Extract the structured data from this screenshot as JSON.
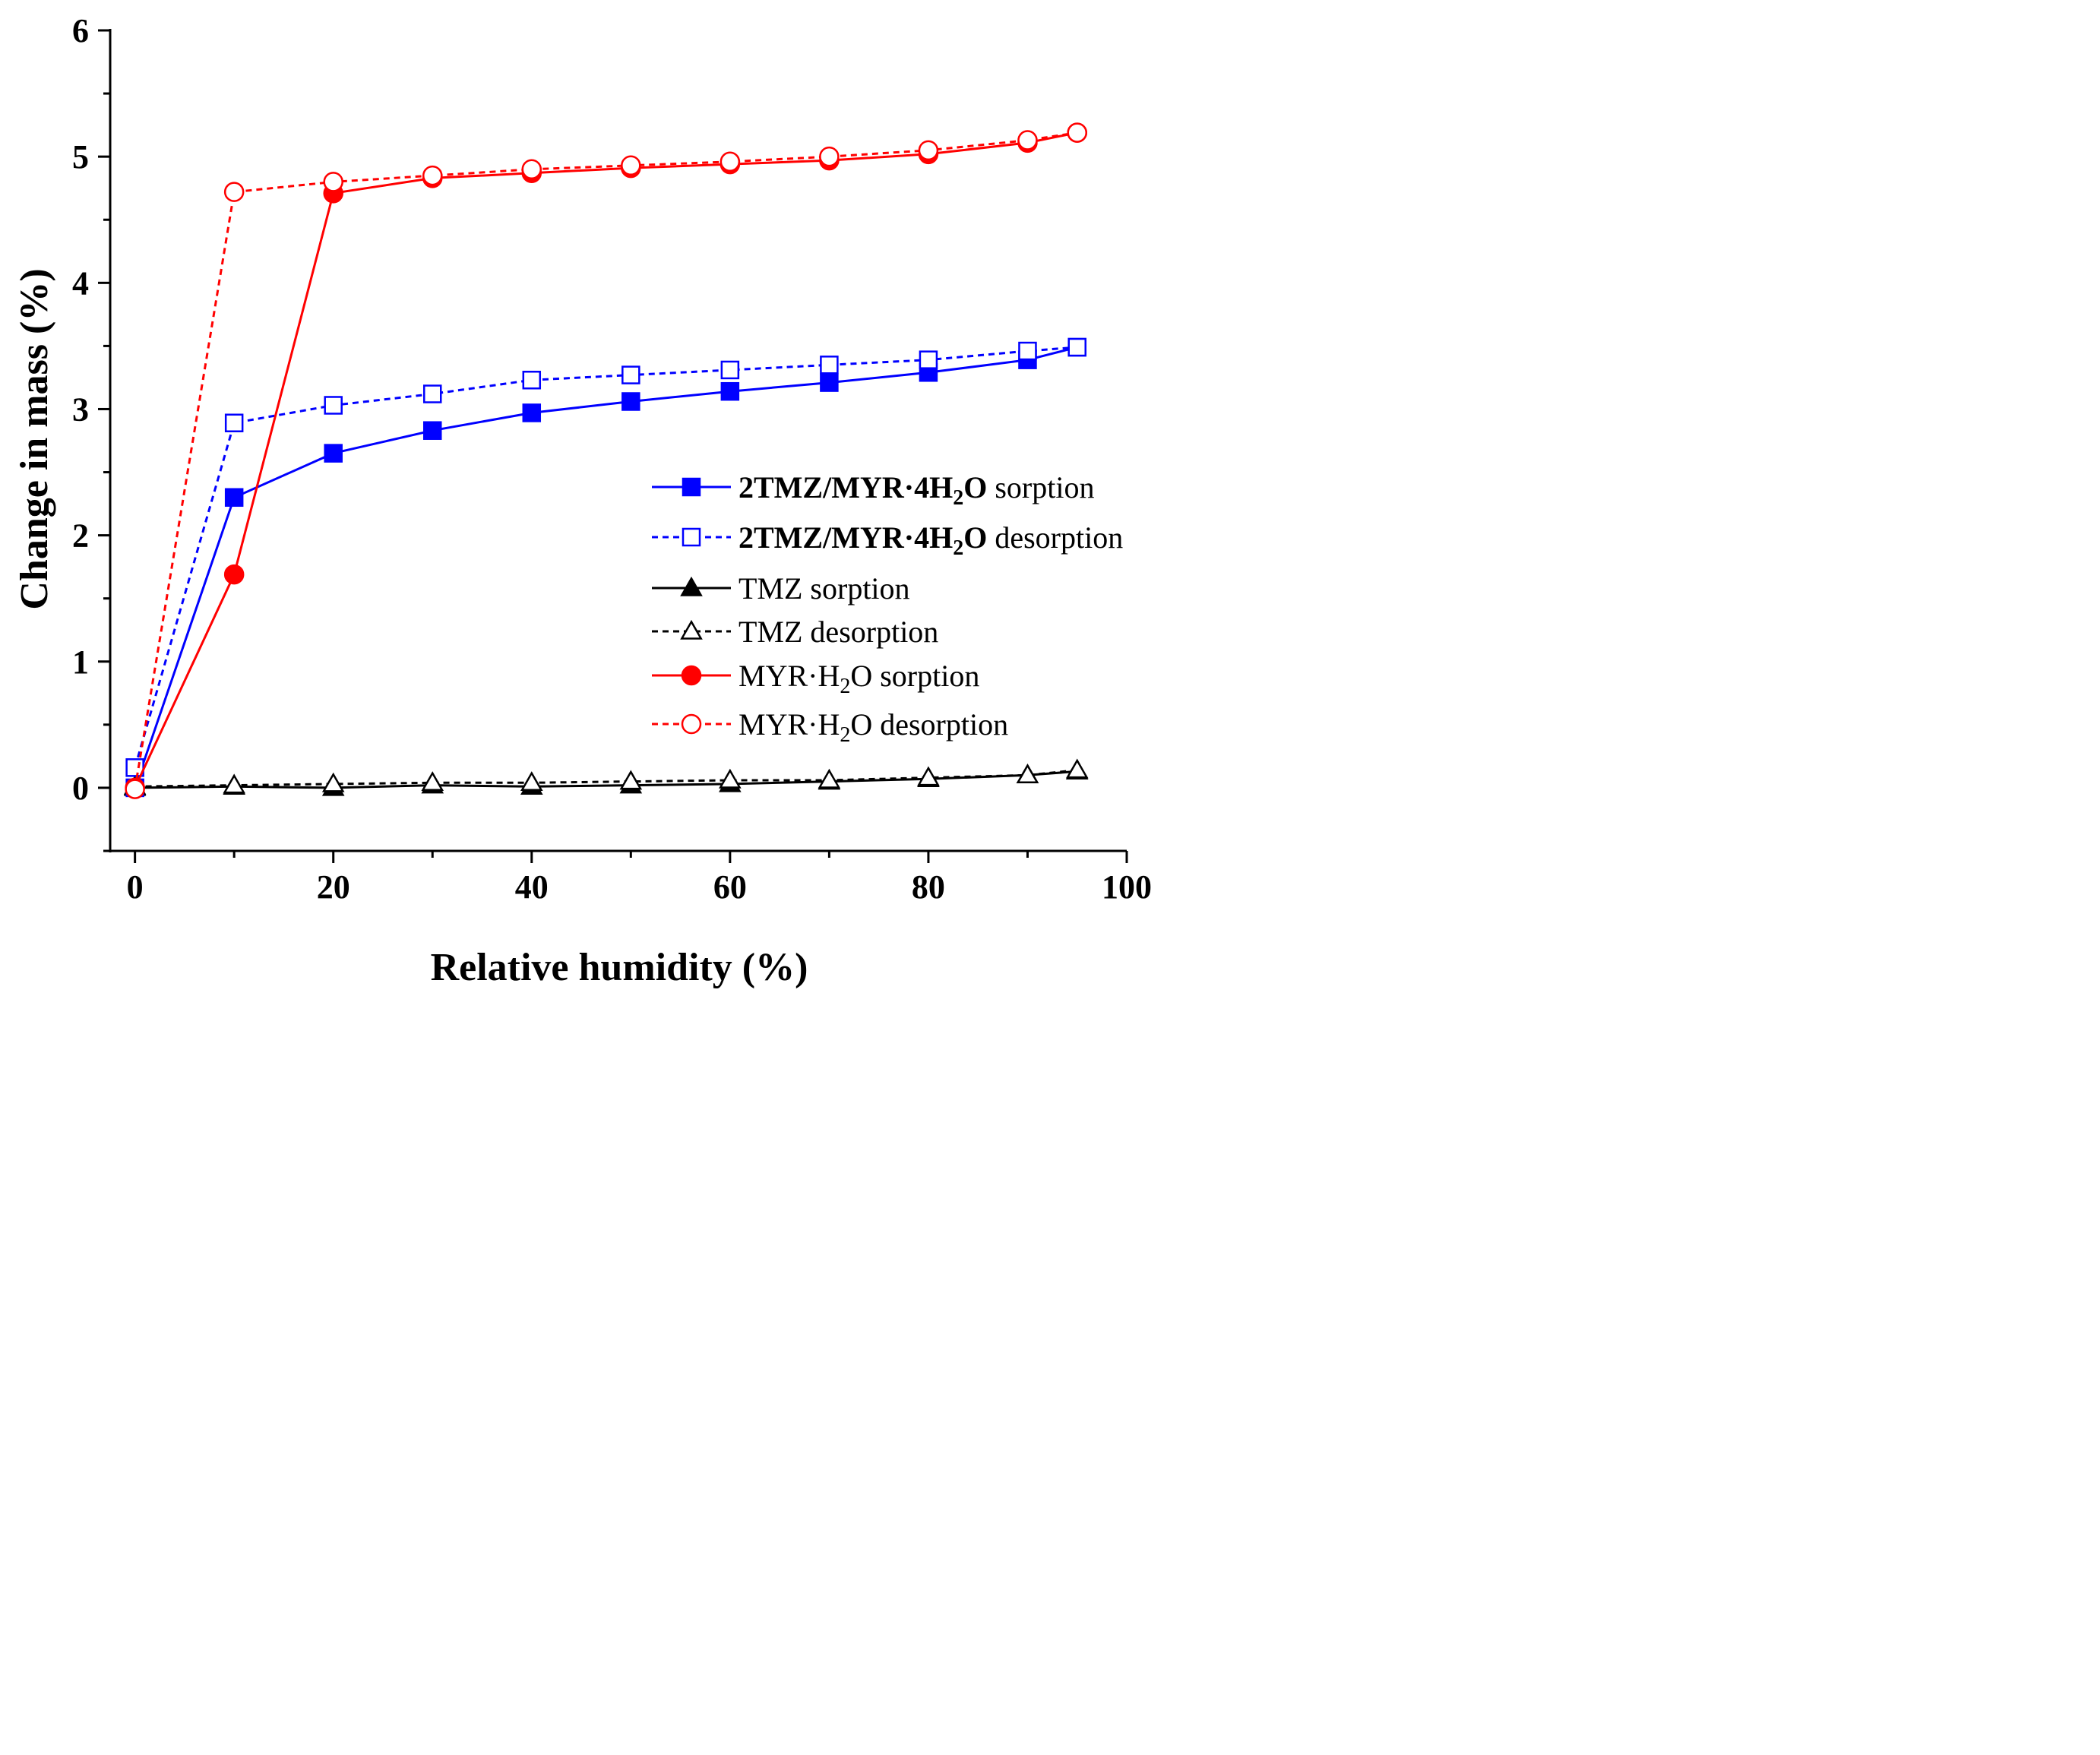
{
  "chart_data": {
    "type": "line",
    "title": "",
    "xlabel": "Relative humidity (%)",
    "ylabel": "Change in mass (%)",
    "xlim": [
      -2.5,
      100
    ],
    "ylim": [
      -0.5,
      6
    ],
    "xticks": [
      0,
      20,
      40,
      60,
      80,
      100
    ],
    "yticks": [
      0,
      1,
      2,
      3,
      4,
      5,
      6
    ],
    "grid": false,
    "legend_position": "center-right",
    "series": [
      {
        "name": "2TMZ/MYR·4H2O sorption",
        "label_bold": "2TMZ/MYR·4H",
        "label_sub": "2",
        "label_bold_tail": "O",
        "label_rest": " sorption",
        "color": "#0000ff",
        "dash": "solid",
        "marker": "square",
        "filled": true,
        "x": [
          0,
          10,
          20,
          30,
          40,
          50,
          60,
          70,
          80,
          90,
          95
        ],
        "y": [
          0.0,
          2.3,
          2.65,
          2.83,
          2.97,
          3.06,
          3.14,
          3.21,
          3.29,
          3.39,
          3.49
        ]
      },
      {
        "name": "2TMZ/MYR·4H2O desorption",
        "label_bold": "2TMZ/MYR·4H",
        "label_sub": "2",
        "label_bold_tail": "O",
        "label_rest": " desorption",
        "color": "#0000ff",
        "dash": "dotted",
        "marker": "square",
        "filled": false,
        "x": [
          0,
          10,
          20,
          30,
          40,
          50,
          60,
          70,
          80,
          90,
          95
        ],
        "y": [
          0.16,
          2.89,
          3.03,
          3.12,
          3.23,
          3.27,
          3.31,
          3.35,
          3.39,
          3.46,
          3.49
        ]
      },
      {
        "name": "TMZ sorption",
        "label_bold": "",
        "label_sub": "",
        "label_bold_tail": "",
        "label_rest": "TMZ sorption",
        "color": "#000000",
        "dash": "solid",
        "marker": "triangle",
        "filled": true,
        "x": [
          0,
          10,
          20,
          30,
          40,
          50,
          60,
          70,
          80,
          90,
          95
        ],
        "y": [
          0.0,
          0.01,
          0.0,
          0.02,
          0.01,
          0.02,
          0.03,
          0.05,
          0.07,
          0.1,
          0.13
        ]
      },
      {
        "name": "TMZ desorption",
        "label_bold": "",
        "label_sub": "",
        "label_bold_tail": "",
        "label_rest": "TMZ desorption",
        "color": "#000000",
        "dash": "dotted",
        "marker": "triangle",
        "filled": false,
        "x": [
          0,
          10,
          20,
          30,
          40,
          50,
          60,
          70,
          80,
          90,
          95
        ],
        "y": [
          0.01,
          0.02,
          0.03,
          0.04,
          0.04,
          0.05,
          0.06,
          0.06,
          0.08,
          0.1,
          0.14
        ]
      },
      {
        "name": "MYR·H2O sorption",
        "label_bold": "",
        "label_sub": "",
        "label_bold_tail": "",
        "label_rest": "MYR·H",
        "label_rest_sub": "2",
        "label_rest_tail": "O sorption",
        "color": "#ff0000",
        "dash": "solid",
        "marker": "circle",
        "filled": true,
        "x": [
          0,
          10,
          20,
          30,
          40,
          50,
          60,
          70,
          80,
          90,
          95
        ],
        "y": [
          0.0,
          1.69,
          4.71,
          4.83,
          4.87,
          4.91,
          4.94,
          4.97,
          5.02,
          5.11,
          5.19
        ]
      },
      {
        "name": "MYR·H2O desorption",
        "label_bold": "",
        "label_sub": "",
        "label_bold_tail": "",
        "label_rest": "MYR·H",
        "label_rest_sub": "2",
        "label_rest_tail": "O desorption",
        "color": "#ff0000",
        "dash": "dotted",
        "marker": "circle",
        "filled": false,
        "x": [
          0,
          10,
          20,
          30,
          40,
          50,
          60,
          70,
          80,
          90,
          95
        ],
        "y": [
          -0.01,
          4.72,
          4.8,
          4.85,
          4.9,
          4.93,
          4.96,
          5.0,
          5.05,
          5.13,
          5.19
        ]
      }
    ]
  }
}
